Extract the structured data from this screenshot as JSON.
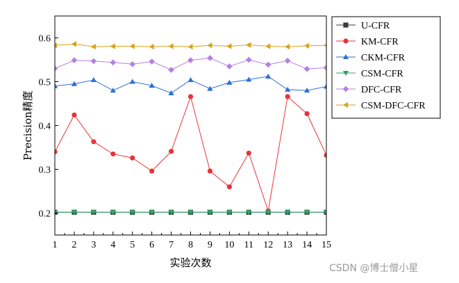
{
  "chart_data": {
    "type": "line",
    "xlabel": "实验次数",
    "ylabel": "Precision精度",
    "xlim": [
      1,
      15
    ],
    "ylim": [
      0.15,
      0.65
    ],
    "xticks": [
      "1",
      "2",
      "3",
      "4",
      "5",
      "6",
      "7",
      "8",
      "9",
      "10",
      "11",
      "12",
      "13",
      "14",
      "15"
    ],
    "yticks": [
      "0.2",
      "0.3",
      "0.4",
      "0.5",
      "0.6"
    ],
    "grid": false,
    "legend_position": "right",
    "x": [
      1,
      2,
      3,
      4,
      5,
      6,
      7,
      8,
      9,
      10,
      11,
      12,
      13,
      14,
      15
    ],
    "series": [
      {
        "name": "U-CFR",
        "marker": "square",
        "color": "#3b3b3b",
        "values": [
          0.202,
          0.202,
          0.202,
          0.202,
          0.202,
          0.202,
          0.202,
          0.202,
          0.202,
          0.202,
          0.202,
          0.202,
          0.202,
          0.202,
          0.202
        ]
      },
      {
        "name": "KM-CFR",
        "marker": "circle",
        "color": "#e8333a",
        "values": [
          0.34,
          0.424,
          0.363,
          0.335,
          0.326,
          0.296,
          0.341,
          0.466,
          0.296,
          0.26,
          0.337,
          0.205,
          0.466,
          0.427,
          0.332
        ]
      },
      {
        "name": "CKM-CFR",
        "marker": "triangle-up",
        "color": "#2f6fd6",
        "values": [
          0.49,
          0.495,
          0.504,
          0.48,
          0.5,
          0.491,
          0.474,
          0.504,
          0.484,
          0.498,
          0.505,
          0.512,
          0.482,
          0.48,
          0.489
        ]
      },
      {
        "name": "CSM-CFR",
        "marker": "triangle-down",
        "color": "#2ea36a",
        "values": [
          0.202,
          0.202,
          0.202,
          0.202,
          0.202,
          0.202,
          0.202,
          0.202,
          0.202,
          0.202,
          0.202,
          0.202,
          0.202,
          0.202,
          0.202
        ]
      },
      {
        "name": "DFC-CFR",
        "marker": "diamond",
        "color": "#b57fe0",
        "values": [
          0.53,
          0.549,
          0.547,
          0.544,
          0.54,
          0.546,
          0.527,
          0.549,
          0.554,
          0.535,
          0.55,
          0.539,
          0.548,
          0.529,
          0.532
        ]
      },
      {
        "name": "CSM-DFC-CFR",
        "marker": "triangle-left",
        "color": "#d9a21b",
        "values": [
          0.583,
          0.586,
          0.58,
          0.581,
          0.581,
          0.58,
          0.581,
          0.58,
          0.583,
          0.581,
          0.584,
          0.581,
          0.58,
          0.582,
          0.583
        ]
      }
    ]
  },
  "watermark": "CSDN @博士僧小星"
}
